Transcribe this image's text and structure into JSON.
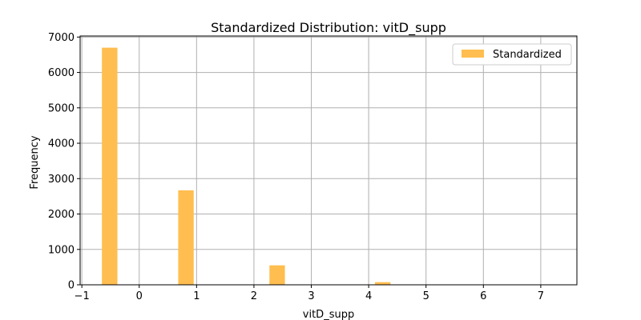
{
  "chart_data": {
    "type": "bar",
    "title": "Standardized Distribution: vitD_supp",
    "xlabel": "vitD_supp",
    "ylabel": "Frequency",
    "xlim": [
      -1.03,
      7.63
    ],
    "ylim": [
      0,
      7030
    ],
    "xticks": [
      -1,
      0,
      1,
      2,
      3,
      4,
      5,
      6,
      7
    ],
    "yticks": [
      0,
      1000,
      2000,
      3000,
      4000,
      5000,
      6000,
      7000
    ],
    "grid": true,
    "legend_position": "top-right",
    "color": "#ffbe4f",
    "series": [
      {
        "name": "Standardized",
        "bins": [
          {
            "x0": -0.65,
            "x1": -0.38,
            "value": 6700
          },
          {
            "x0": 0.68,
            "x1": 0.95,
            "value": 2670
          },
          {
            "x0": 2.27,
            "x1": 2.54,
            "value": 550
          },
          {
            "x0": 4.11,
            "x1": 4.38,
            "value": 75
          }
        ]
      }
    ]
  }
}
